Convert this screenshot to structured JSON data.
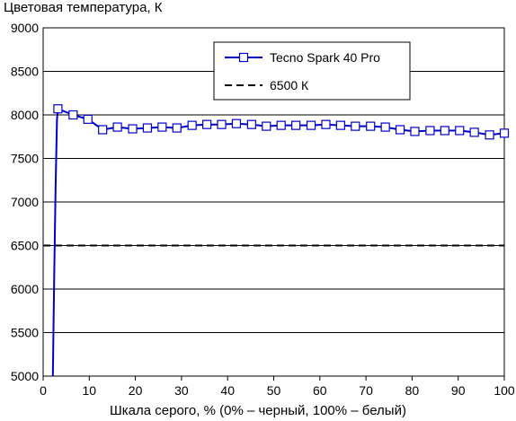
{
  "chart_data": {
    "type": "line",
    "title": "Цветовая температура, К",
    "xlabel": "Шкала серого, % (0% – черный, 100% – белый)",
    "ylabel": "",
    "xlim": [
      0,
      100
    ],
    "ylim": [
      5000,
      9000
    ],
    "xticks": [
      0,
      10,
      20,
      30,
      40,
      50,
      60,
      70,
      80,
      90,
      100
    ],
    "yticks": [
      5000,
      5500,
      6000,
      6500,
      7000,
      7500,
      8000,
      8500,
      9000
    ],
    "grid": "horizontal",
    "legend_position": "top-right",
    "series": [
      {
        "name": "Tecno Spark 40 Pro",
        "color": "#0000cc",
        "marker": "open-square",
        "line": "solid",
        "x": [
          2.1,
          2.4,
          2.7,
          3.0,
          3.2,
          6.5,
          9.7,
          12.9,
          16.1,
          19.4,
          22.6,
          25.8,
          29.0,
          32.3,
          35.5,
          38.7,
          41.9,
          45.2,
          48.4,
          51.6,
          54.8,
          58.1,
          61.3,
          64.5,
          67.7,
          71.0,
          74.2,
          77.4,
          80.6,
          83.9,
          87.1,
          90.3,
          93.5,
          96.8,
          100
        ],
        "y": [
          5000,
          6150,
          7200,
          7950,
          8070,
          8000,
          7950,
          7830,
          7860,
          7840,
          7850,
          7860,
          7850,
          7880,
          7890,
          7890,
          7900,
          7890,
          7870,
          7880,
          7880,
          7880,
          7890,
          7880,
          7870,
          7870,
          7860,
          7830,
          7810,
          7820,
          7820,
          7820,
          7800,
          7770,
          7790
        ],
        "markers_from_index": 4
      },
      {
        "name": "6500 К",
        "color": "#000000",
        "line": "dashed",
        "x": [
          0,
          100
        ],
        "y": [
          6500,
          6500
        ]
      }
    ]
  }
}
